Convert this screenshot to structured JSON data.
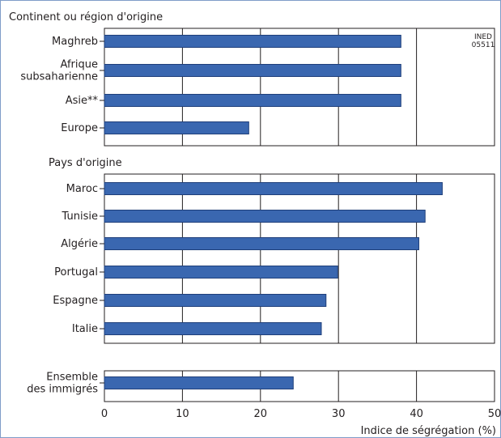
{
  "chart_data": [
    {
      "type": "bar",
      "orientation": "horizontal",
      "title": "Continent ou région d'origine",
      "categories": [
        "Maghreb",
        "Afrique\nsubsaharienne",
        "Asie**",
        "Europe"
      ],
      "values": [
        38,
        38,
        38,
        18.5
      ],
      "xlim": [
        0,
        50
      ],
      "annotation": "INED\n05511",
      "grid": true
    },
    {
      "type": "bar",
      "orientation": "horizontal",
      "title": "Pays d'origine",
      "categories": [
        "Maroc",
        "Tunisie",
        "Algérie",
        "Portugal",
        "Espagne",
        "Italie"
      ],
      "values": [
        43.3,
        41.1,
        40.3,
        29.9,
        28.4,
        27.8
      ],
      "xlim": [
        0,
        50
      ],
      "grid": true
    },
    {
      "type": "bar",
      "orientation": "horizontal",
      "title": "",
      "categories": [
        "Ensemble\ndes immigrés"
      ],
      "values": [
        24.2
      ],
      "xlim": [
        0,
        50
      ],
      "grid": true
    }
  ],
  "axis": {
    "ticks": [
      "0",
      "10",
      "20",
      "30",
      "40",
      "50"
    ],
    "xlabel": "Indice de ségrégation (%)"
  },
  "colors": {
    "bar": "#3a67b0",
    "bar_border": "#1f3f7a",
    "grid": "#231f20",
    "frame": "#7f9cc8"
  }
}
